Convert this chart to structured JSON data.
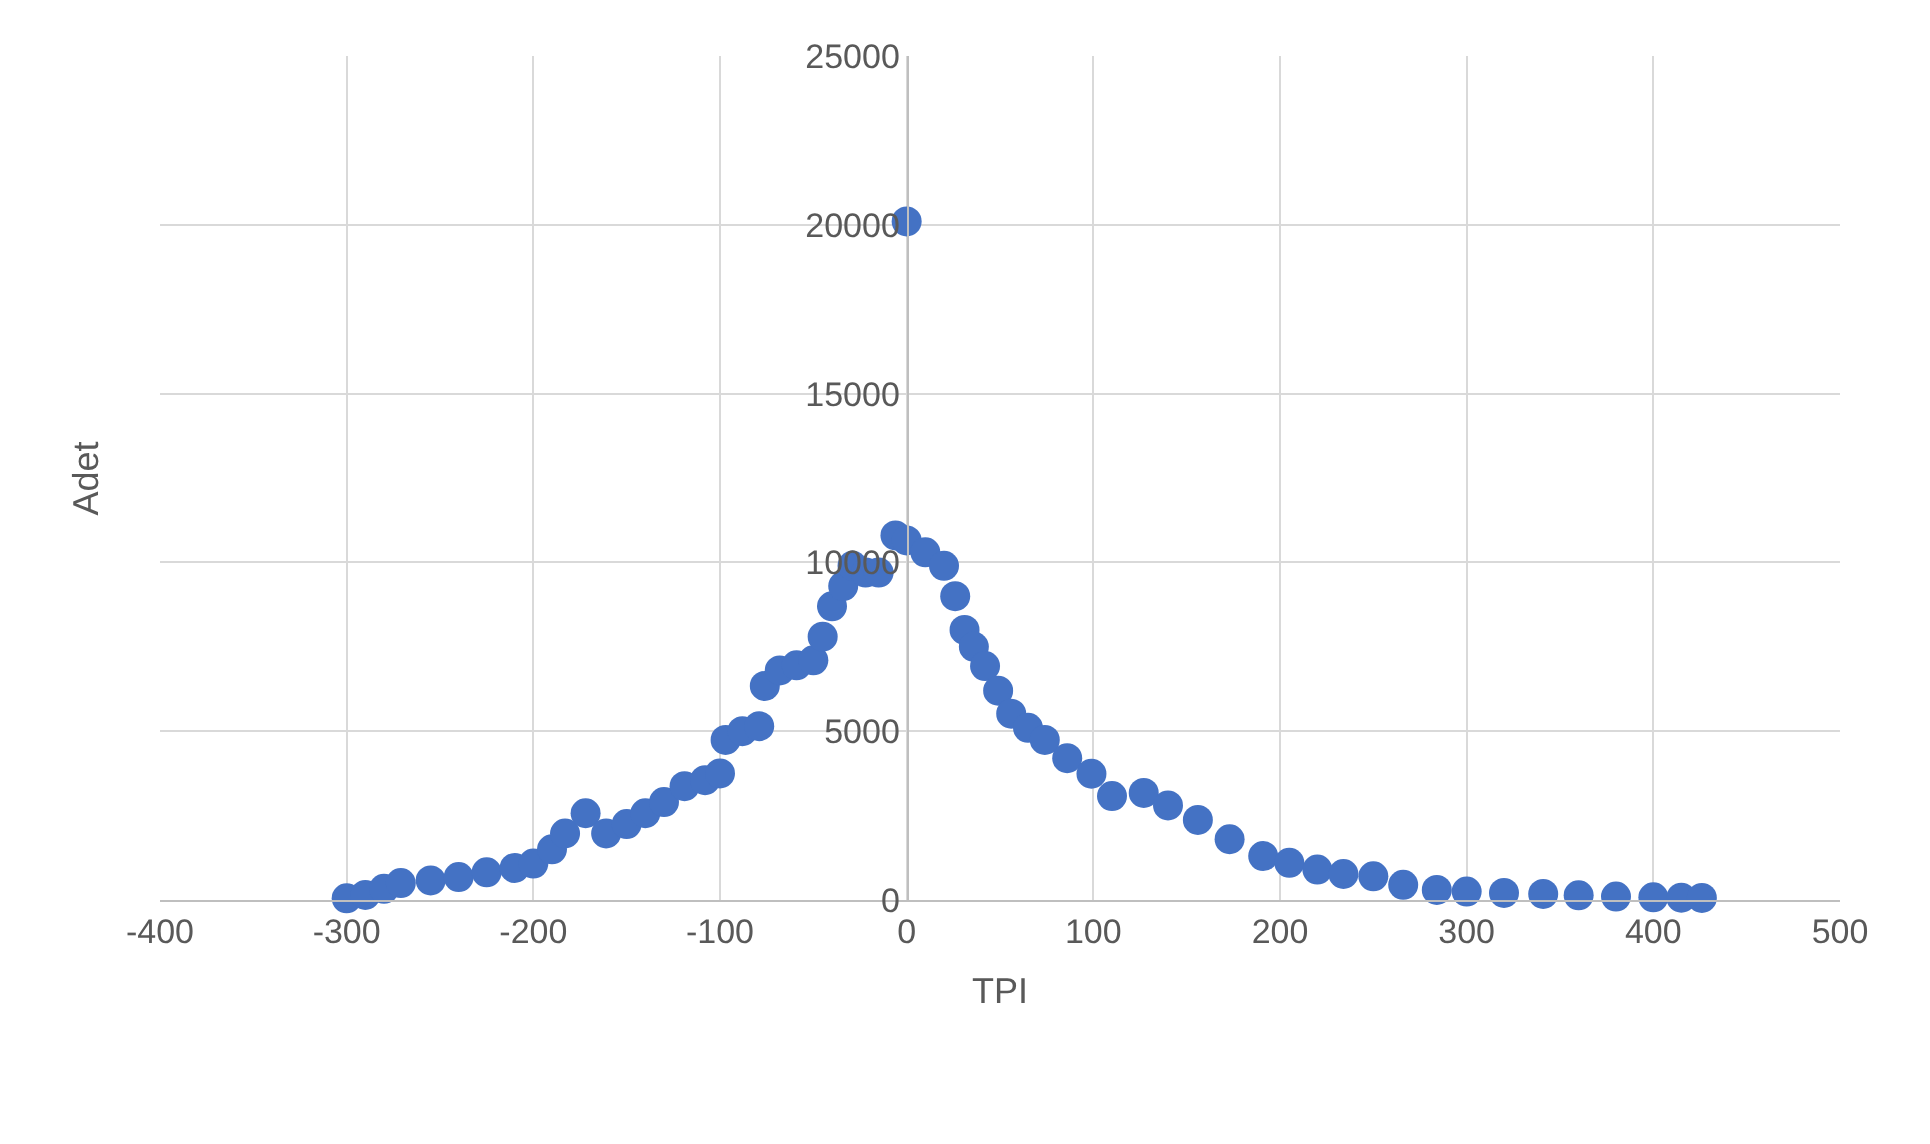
{
  "chart_data": {
    "type": "scatter",
    "xlabel": "TPI",
    "ylabel": "Adet",
    "x": [
      -300,
      -290,
      -280,
      -271,
      -255,
      -240,
      -225,
      -210,
      -200,
      -190,
      -183,
      -172,
      -161,
      -150,
      -140,
      -130,
      -119,
      -108,
      -100,
      -97,
      -88,
      -79,
      -76,
      -68,
      -59,
      -50,
      -45,
      -40,
      -34,
      -29,
      -22,
      -15,
      -6,
      0,
      0,
      10,
      20,
      26,
      31,
      36,
      42,
      49,
      56,
      65,
      74,
      86,
      99,
      110,
      127,
      140,
      156,
      173,
      191,
      205,
      220,
      234,
      250,
      266,
      284,
      300,
      320,
      341,
      360,
      380,
      400,
      415,
      426
    ],
    "series": [
      {
        "color": "#4472c4",
        "values": [
          50,
          150,
          330,
          500,
          580,
          680,
          820,
          950,
          1080,
          1500,
          1970,
          2570,
          1970,
          2250,
          2570,
          2900,
          3370,
          3550,
          3750,
          4740,
          5000,
          5150,
          6340,
          6800,
          6950,
          7100,
          7800,
          8700,
          9300,
          9900,
          9700,
          9700,
          10800,
          10650,
          20100,
          10300,
          9900,
          9000,
          8000,
          7500,
          6930,
          6200,
          5520,
          5100,
          4740,
          4200,
          3740,
          3080,
          3170,
          2800,
          2370,
          1800,
          1300,
          1100,
          900,
          770,
          700,
          450,
          300,
          250,
          210,
          180,
          140,
          100,
          80,
          70,
          60
        ]
      }
    ],
    "xlim": [
      -400,
      500
    ],
    "xticks": [
      -400,
      -300,
      -200,
      -100,
      0,
      100,
      200,
      300,
      400,
      500
    ],
    "ylim": [
      0,
      25000
    ],
    "yticks": [
      0,
      5000,
      10000,
      15000,
      20000,
      25000
    ],
    "grid": true,
    "legend": false,
    "marker": "circle"
  }
}
